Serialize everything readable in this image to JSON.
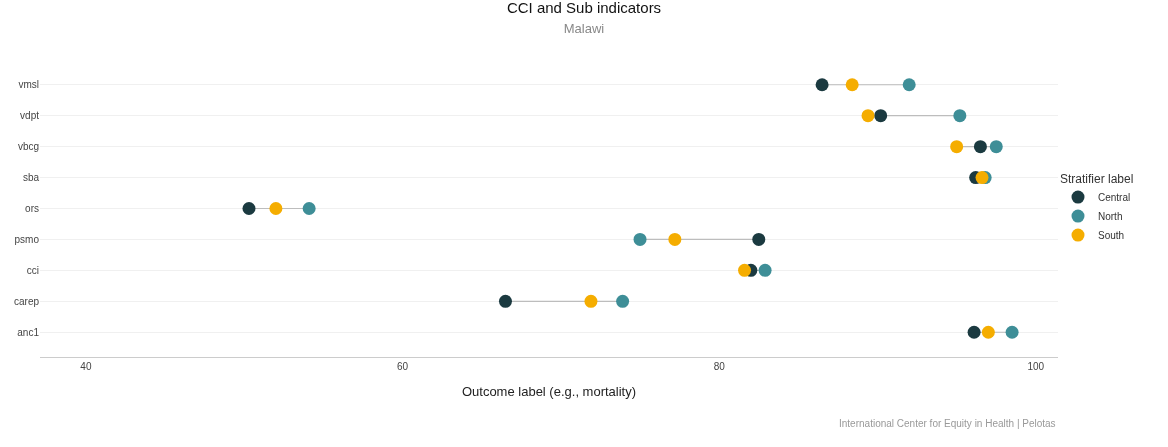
{
  "chart_data": {
    "type": "scatter",
    "orientation": "horizontal",
    "title": "CCI and Sub indicators",
    "subtitle": "Malawi",
    "xlabel": "Outcome label (e.g., mortality)",
    "legend_title": "Stratifier label",
    "categories": [
      "vmsl",
      "vdpt",
      "vbcg",
      "sba",
      "ors",
      "psmo",
      "cci",
      "carep",
      "anc1"
    ],
    "series": [
      {
        "name": "Central",
        "color": "#1b3a40",
        "values": [
          86.5,
          90.2,
          96.5,
          96.2,
          50.3,
          82.5,
          82.0,
          66.5,
          96.1
        ]
      },
      {
        "name": "North",
        "color": "#3e8e97",
        "values": [
          92.0,
          95.2,
          97.5,
          96.8,
          54.1,
          75.0,
          82.9,
          73.9,
          98.5
        ]
      },
      {
        "name": "South",
        "color": "#f5ad00",
        "values": [
          88.4,
          89.4,
          95.0,
          96.6,
          52.0,
          77.2,
          81.6,
          71.9,
          97.0
        ]
      }
    ],
    "xlim": [
      37.1,
      101.4
    ],
    "xticks": [
      40,
      60,
      80,
      100
    ],
    "grid": "y",
    "legend": "right",
    "marker": "circle",
    "annotations": [
      "International Center for Equity in Health | Pelotas"
    ]
  }
}
